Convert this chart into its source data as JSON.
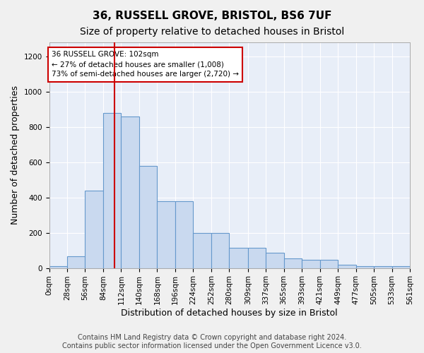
{
  "title1": "36, RUSSELL GROVE, BRISTOL, BS6 7UF",
  "title2": "Size of property relative to detached houses in Bristol",
  "xlabel": "Distribution of detached houses by size in Bristol",
  "ylabel": "Number of detached properties",
  "bar_edges": [
    0,
    28,
    56,
    84,
    112,
    140,
    168,
    196,
    224,
    252,
    280,
    309,
    337,
    365,
    393,
    421,
    449,
    477,
    505,
    533,
    561
  ],
  "bar_heights": [
    10,
    65,
    440,
    880,
    860,
    580,
    380,
    380,
    200,
    200,
    115,
    115,
    85,
    55,
    45,
    45,
    20,
    12,
    10,
    10
  ],
  "bar_color": "#c9d9ef",
  "bar_edge_color": "#6699cc",
  "bar_linewidth": 0.8,
  "vline_x": 102,
  "vline_color": "#cc0000",
  "vline_linewidth": 1.5,
  "annotation_text": "36 RUSSELL GROVE: 102sqm\n← 27% of detached houses are smaller (1,008)\n73% of semi-detached houses are larger (2,720) →",
  "annotation_box_color": "#cc0000",
  "annotation_text_color": "#000000",
  "ylim": [
    0,
    1280
  ],
  "yticks": [
    0,
    200,
    400,
    600,
    800,
    1000,
    1200
  ],
  "xtick_labels": [
    "0sqm",
    "28sqm",
    "56sqm",
    "84sqm",
    "112sqm",
    "140sqm",
    "168sqm",
    "196sqm",
    "224sqm",
    "252sqm",
    "280sqm",
    "309sqm",
    "337sqm",
    "365sqm",
    "393sqm",
    "421sqm",
    "449sqm",
    "477sqm",
    "505sqm",
    "533sqm",
    "561sqm"
  ],
  "background_color": "#e8eef8",
  "grid_color": "#ffffff",
  "footer_text": "Contains HM Land Registry data © Crown copyright and database right 2024.\nContains public sector information licensed under the Open Government Licence v3.0.",
  "title1_fontsize": 11,
  "title2_fontsize": 10,
  "xlabel_fontsize": 9,
  "ylabel_fontsize": 9,
  "tick_fontsize": 7.5,
  "footer_fontsize": 7
}
